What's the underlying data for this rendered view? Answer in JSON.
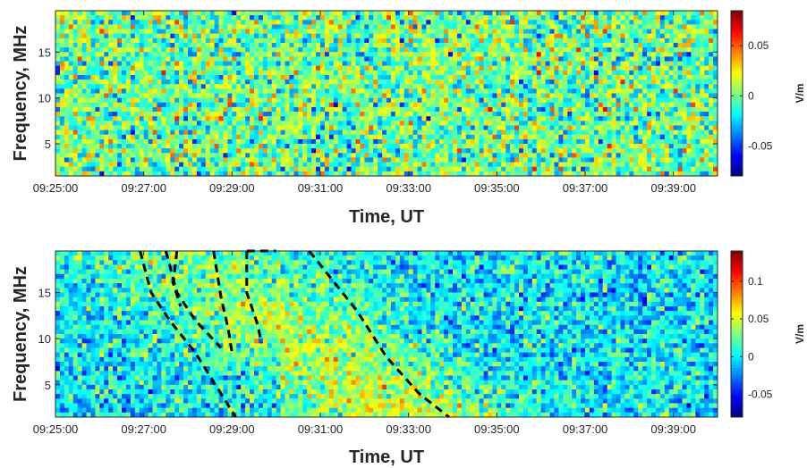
{
  "chart_data": [
    {
      "type": "heatmap",
      "xlabel": "Time, UT",
      "ylabel": "Frequency, MHz",
      "x_ticks": [
        "09:25:00",
        "09:27:00",
        "09:29:00",
        "09:31:00",
        "09:33:00",
        "09:35:00",
        "09:37:00",
        "09:39:00"
      ],
      "xlim": [
        "09:25:00",
        "09:40:00"
      ],
      "y_ticks": [
        5,
        10,
        15
      ],
      "ylim": [
        1.5,
        19.5
      ],
      "colorbar": {
        "ticks": [
          "-0.05",
          "0",
          "0.05"
        ],
        "range": [
          -0.08,
          0.085
        ],
        "label": "V/m",
        "colormap": "jet"
      },
      "pattern": "random noise around 0, no structure",
      "grid": false
    },
    {
      "type": "heatmap",
      "xlabel": "Time, UT",
      "ylabel": "Frequency, MHz",
      "x_ticks": [
        "09:25:00",
        "09:27:00",
        "09:29:00",
        "09:31:00",
        "09:33:00",
        "09:35:00",
        "09:37:00",
        "09:39:00"
      ],
      "xlim": [
        "09:25:00",
        "09:40:00"
      ],
      "y_ticks": [
        5,
        10,
        15
      ],
      "ylim": [
        1.5,
        19.5
      ],
      "colorbar": {
        "ticks": [
          "-0.05",
          "0",
          "0.05",
          "0.1"
        ],
        "range": [
          -0.08,
          0.14
        ],
        "label": "V/m",
        "colormap": "jet"
      },
      "pattern": "enhanced (yellow/orange) dispersed region between about 09:27 and 09:33",
      "grid": false,
      "dashed_curves": [
        {
          "points": [
            [
              "09:26:55",
              19.5
            ],
            [
              "09:27:10",
              15.0
            ],
            [
              "09:27:35",
              12.0
            ],
            [
              "09:28:10",
              8.5
            ],
            [
              "09:29:05",
              1.5
            ]
          ]
        },
        {
          "points": [
            [
              "09:27:30",
              19.5
            ],
            [
              "09:27:45",
              15.0
            ],
            [
              "09:28:10",
              12.0
            ],
            [
              "09:28:45",
              9.0
            ]
          ]
        },
        {
          "points": [
            [
              "09:27:45",
              19.5
            ],
            [
              "09:27:40",
              16.0
            ],
            [
              "09:27:50",
              13.5
            ]
          ]
        },
        {
          "points": [
            [
              "09:28:35",
              19.5
            ],
            [
              "09:28:45",
              14.5
            ],
            [
              "09:28:55",
              11.0
            ],
            [
              "09:29:00",
              8.5
            ]
          ]
        },
        {
          "points": [
            [
              "09:29:20",
              19.5
            ],
            [
              "09:29:20",
              15.0
            ],
            [
              "09:29:35",
              11.5
            ],
            [
              "09:29:40",
              9.5
            ]
          ]
        },
        {
          "points": [
            [
              "09:29:20",
              19.5
            ],
            [
              "09:30:00",
              19.5
            ]
          ]
        },
        {
          "points": [
            [
              "09:30:45",
              19.5
            ],
            [
              "09:31:15",
              16.5
            ],
            [
              "09:31:50",
              13.0
            ],
            [
              "09:32:30",
              8.0
            ],
            [
              "09:33:15",
              4.0
            ],
            [
              "09:33:55",
              1.5
            ]
          ]
        }
      ]
    }
  ]
}
